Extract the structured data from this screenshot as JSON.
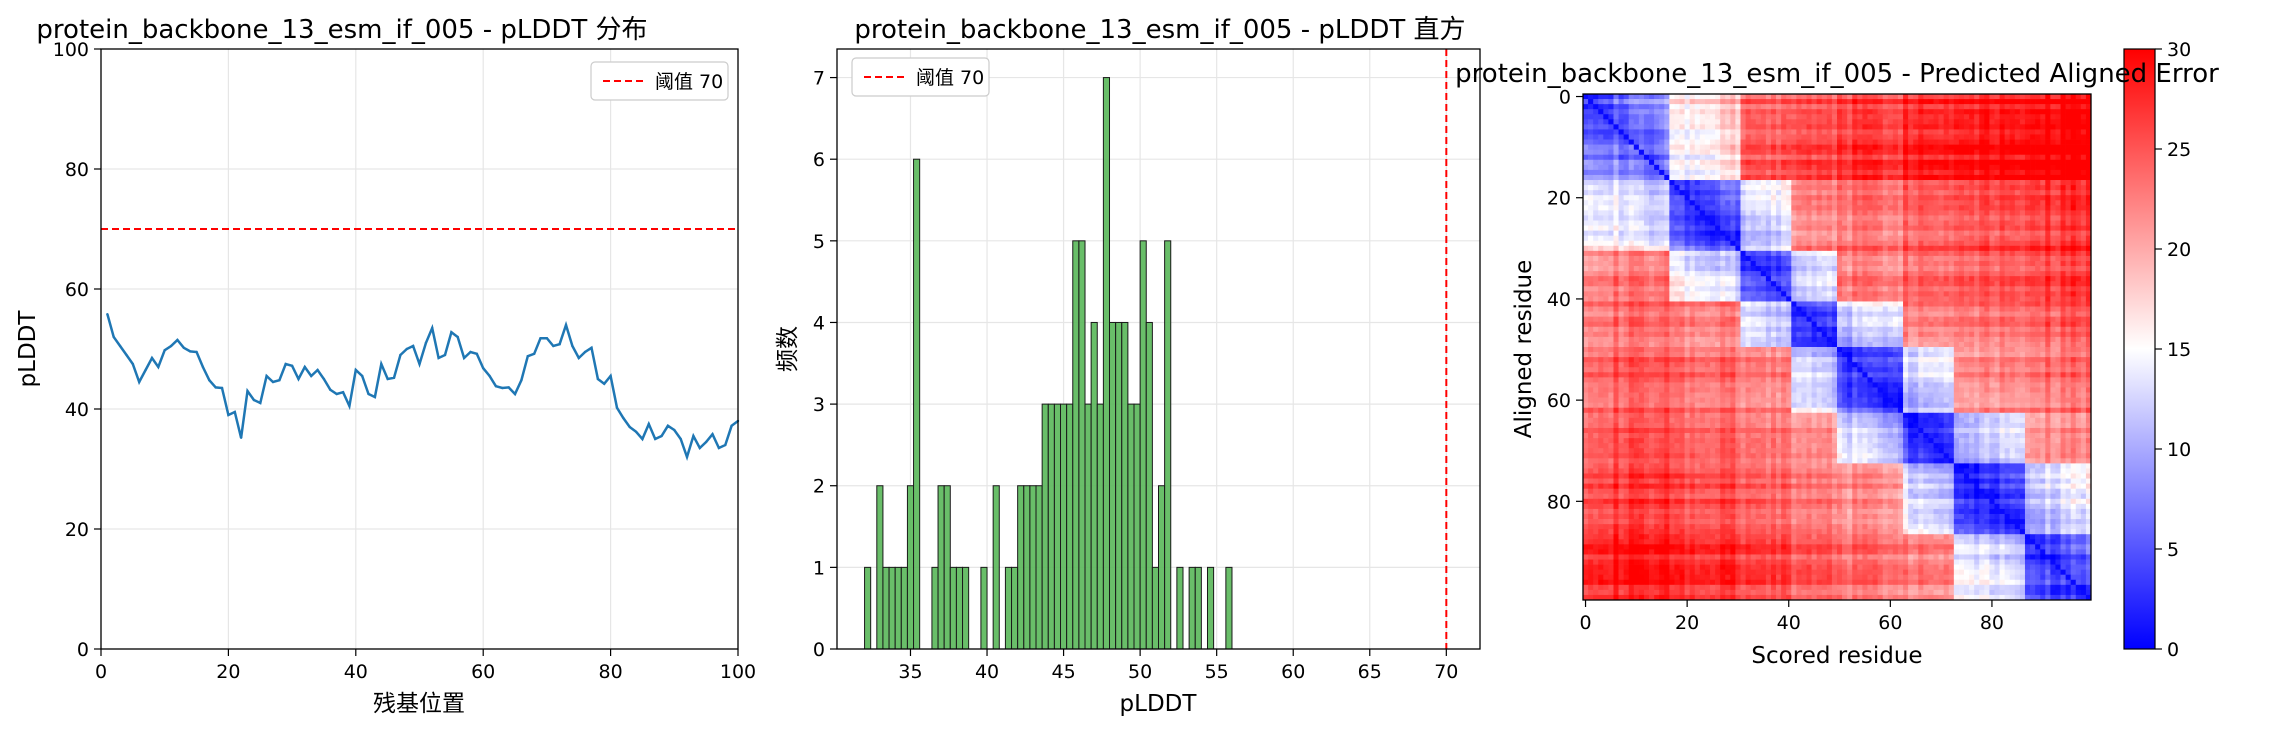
{
  "chart_data": [
    {
      "type": "line",
      "title": "protein_backbone_13_esm_if_005 - pLDDT 分布",
      "xlabel": "残基位置",
      "ylabel": "pLDDT",
      "xlim": [
        0,
        100
      ],
      "ylim": [
        0,
        100
      ],
      "x_ticks": [
        0,
        20,
        40,
        60,
        80,
        100
      ],
      "y_ticks": [
        0,
        20,
        40,
        60,
        80,
        100
      ],
      "grid": true,
      "legend_position": "top-right",
      "threshold": {
        "name": "阈值 70",
        "value": 70,
        "color": "#ff0000",
        "style": "dashed"
      },
      "series": [
        {
          "color": "#1f77b4",
          "x": [
            1,
            2,
            3,
            4,
            5,
            6,
            7,
            8,
            9,
            10,
            11,
            12,
            13,
            14,
            15,
            16,
            17,
            18,
            19,
            20,
            21,
            22,
            23,
            24,
            25,
            26,
            27,
            28,
            29,
            30,
            31,
            32,
            33,
            34,
            35,
            36,
            37,
            38,
            39,
            40,
            41,
            42,
            43,
            44,
            45,
            46,
            47,
            48,
            49,
            50,
            51,
            52,
            53,
            54,
            55,
            56,
            57,
            58,
            59,
            60,
            61,
            62,
            63,
            64,
            65,
            66,
            67,
            68,
            69,
            70,
            71,
            72,
            73,
            74,
            75,
            76,
            77,
            78,
            79,
            80,
            81,
            82,
            83,
            84,
            85,
            86,
            87,
            88,
            89,
            90,
            91,
            92,
            93,
            94,
            95,
            96,
            97,
            98,
            99,
            100
          ],
          "y": [
            55.8,
            52.0,
            50.5,
            49.0,
            47.5,
            44.5,
            46.5,
            48.5,
            47.0,
            49.8,
            50.5,
            51.5,
            50.2,
            49.6,
            49.5,
            47.0,
            44.8,
            43.6,
            43.5,
            39.0,
            39.5,
            35.2,
            43.0,
            41.5,
            41.0,
            45.5,
            44.5,
            44.8,
            47.5,
            47.2,
            45.0,
            47.0,
            45.5,
            46.5,
            45.0,
            43.2,
            42.5,
            42.8,
            40.5,
            46.5,
            45.5,
            42.5,
            42.0,
            47.5,
            45.0,
            45.2,
            49.0,
            50.0,
            50.5,
            47.5,
            51.0,
            53.5,
            48.5,
            49.0,
            52.8,
            52.0,
            48.5,
            49.5,
            49.2,
            46.8,
            45.5,
            43.8,
            43.5,
            43.6,
            42.5,
            44.8,
            48.8,
            49.2,
            51.8,
            51.8,
            50.5,
            50.8,
            54.0,
            50.5,
            48.5,
            49.5,
            50.2,
            45.0,
            44.2,
            45.5,
            40.2,
            38.5,
            37.0,
            36.2,
            35.0,
            37.5,
            35.0,
            35.5,
            37.2,
            36.5,
            35.0,
            32.0,
            35.5,
            33.5,
            34.5,
            35.8,
            33.5,
            34.0,
            37.2,
            38.0
          ]
        }
      ]
    },
    {
      "type": "bar",
      "title": "protein_backbone_13_esm_if_005 - pLDDT 直方",
      "xlabel": "pLDDT",
      "ylabel": "频数",
      "xlim": [
        30.2,
        72.2
      ],
      "ylim": [
        0,
        7.35
      ],
      "x_ticks": [
        35,
        40,
        45,
        50,
        55,
        60,
        65,
        70
      ],
      "y_ticks": [
        0,
        1,
        2,
        3,
        4,
        5,
        6,
        7
      ],
      "grid": true,
      "legend_position": "top-left",
      "threshold": {
        "name": "阈值 70",
        "value": 70,
        "color": "#ff0000",
        "style": "dashed"
      },
      "bar_color": "#5cb85c",
      "bin_width": 0.4,
      "bins": [
        32.0,
        32.8,
        33.2,
        33.6,
        34.0,
        34.4,
        34.8,
        35.2,
        35.6,
        36.4,
        36.8,
        37.2,
        37.6,
        38.0,
        38.4,
        39.6,
        40.4,
        41.2,
        41.6,
        42.0,
        42.4,
        42.8,
        43.2,
        43.6,
        44.0,
        44.4,
        44.8,
        45.2,
        45.6,
        46.0,
        46.4,
        46.8,
        47.2,
        47.6,
        48.0,
        48.4,
        48.8,
        49.2,
        49.6,
        50.0,
        50.4,
        50.8,
        51.2,
        51.6,
        52.4,
        53.2,
        53.6,
        54.4,
        55.6
      ],
      "values": [
        1,
        2,
        1,
        1,
        1,
        1,
        2,
        6,
        0,
        1,
        2,
        2,
        1,
        1,
        1,
        1,
        2,
        1,
        1,
        2,
        2,
        2,
        2,
        3,
        3,
        3,
        3,
        3,
        5,
        5,
        3,
        4,
        3,
        7,
        4,
        4,
        4,
        3,
        3,
        5,
        4,
        1,
        2,
        5,
        1,
        1,
        1,
        1,
        1
      ]
    },
    {
      "type": "heatmap",
      "title": "protein_backbone_13_esm_if_005 - Predicted Aligned Error",
      "xlabel": "Scored residue",
      "ylabel": "Aligned residue",
      "size": 100,
      "x_ticks": [
        0,
        20,
        40,
        60,
        80
      ],
      "y_ticks": [
        0,
        20,
        40,
        60,
        80
      ],
      "colorscale": "bwr",
      "colorbar_ticks": [
        0,
        5,
        10,
        15,
        20,
        25,
        30
      ],
      "vmin": 0,
      "vmax": 30,
      "domain_blocks": [
        [
          0,
          16
        ],
        [
          17,
          30
        ],
        [
          31,
          40
        ],
        [
          41,
          49
        ],
        [
          50,
          62
        ],
        [
          63,
          72
        ],
        [
          73,
          86
        ],
        [
          87,
          99
        ]
      ],
      "values_note": ""
    }
  ]
}
